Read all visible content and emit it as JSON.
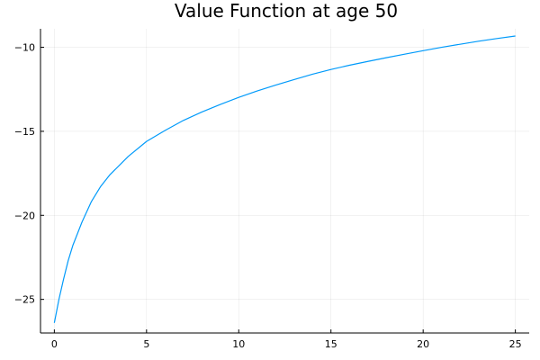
{
  "chart_data": {
    "type": "line",
    "title": "Value Function at age 50",
    "xlabel": "",
    "ylabel": "",
    "xlim": [
      -0.75,
      25.75
    ],
    "ylim": [
      -27,
      -8.9
    ],
    "x_ticks": [
      0,
      5,
      10,
      15,
      20,
      25
    ],
    "x_tick_labels": [
      "0",
      "5",
      "10",
      "15",
      "20",
      "25"
    ],
    "y_ticks": [
      -25,
      -20,
      -15,
      -10
    ],
    "y_tick_labels": [
      "−25",
      "−20",
      "−15",
      "−10"
    ],
    "grid": true,
    "legend": "none",
    "series": [
      {
        "color": "#009AFA",
        "x": [
          0,
          0.25,
          0.5,
          0.75,
          1,
          1.5,
          2,
          2.5,
          3,
          4,
          5,
          6,
          7,
          8,
          9,
          10,
          11,
          12,
          13,
          14,
          15,
          16,
          17,
          18,
          19,
          20,
          21,
          22,
          23,
          24,
          25
        ],
        "y": [
          -26.4,
          -25.0,
          -23.8,
          -22.7,
          -21.8,
          -20.4,
          -19.2,
          -18.3,
          -17.6,
          -16.5,
          -15.6,
          -14.95,
          -14.35,
          -13.85,
          -13.4,
          -12.98,
          -12.6,
          -12.25,
          -11.92,
          -11.6,
          -11.32,
          -11.07,
          -10.84,
          -10.62,
          -10.41,
          -10.2,
          -10.0,
          -9.82,
          -9.64,
          -9.48,
          -9.33
        ]
      }
    ]
  }
}
